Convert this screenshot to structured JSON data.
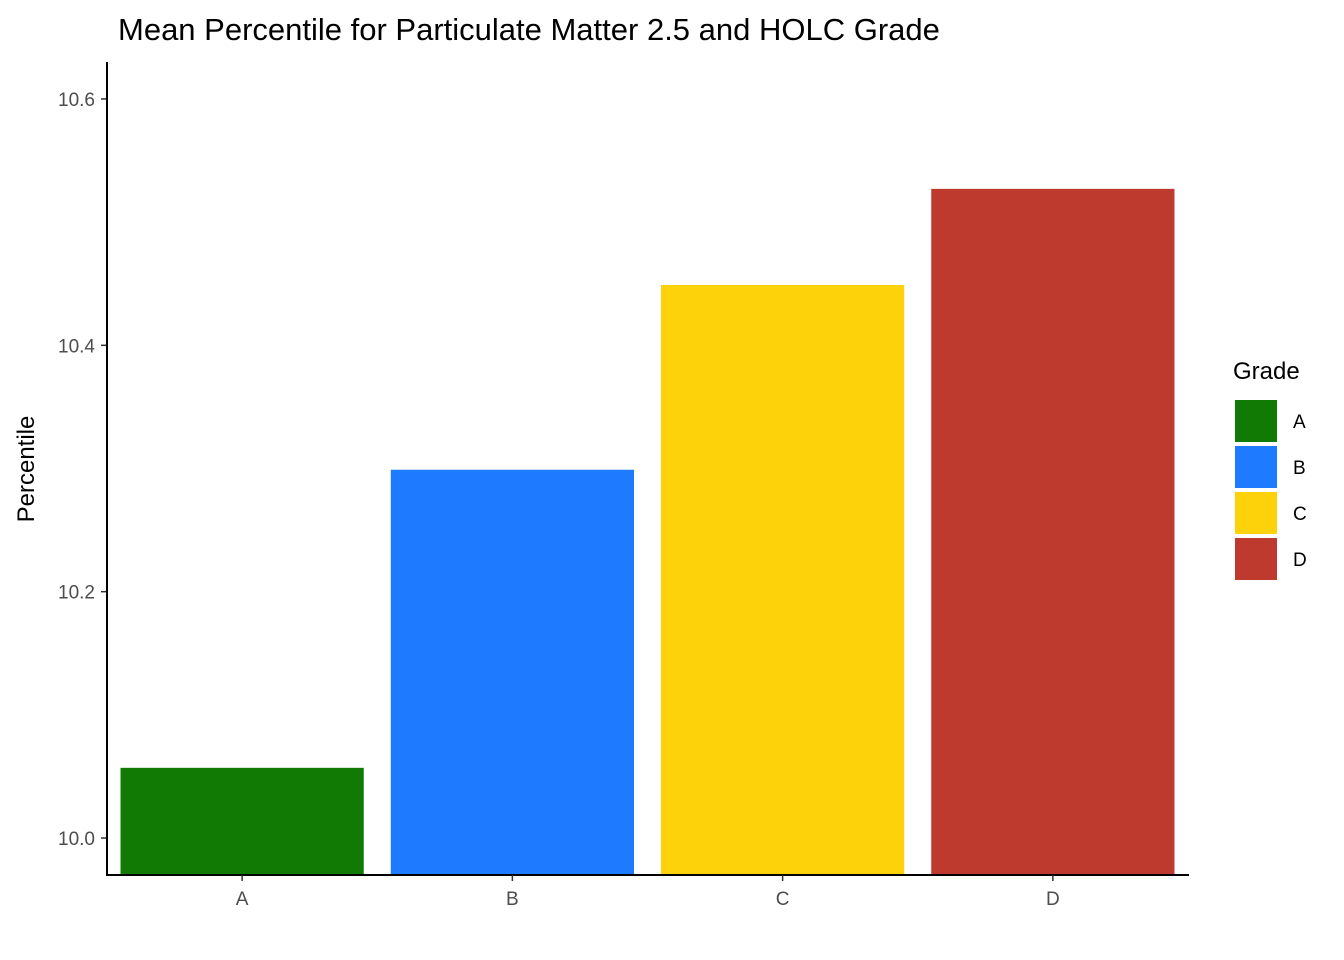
{
  "chart_data": {
    "type": "bar",
    "title": "Mean Percentile for Particulate Matter 2.5 and HOLC Grade",
    "xlabel": "",
    "ylabel": "Percentile",
    "categories": [
      "A",
      "B",
      "C",
      "D"
    ],
    "values": [
      10.057,
      10.299,
      10.449,
      10.527
    ],
    "colors": [
      "#117A04",
      "#1E7BFF",
      "#FDD20B",
      "#BE3A2F"
    ],
    "ylim": [
      9.97,
      10.63
    ],
    "y_ticks": [
      10.0,
      10.2,
      10.4,
      10.6
    ],
    "y_tick_labels": [
      "10.0",
      "10.2",
      "10.4",
      "10.6"
    ],
    "grid": false,
    "legend": {
      "title": "Grade",
      "position": "right",
      "items": [
        "A",
        "B",
        "C",
        "D"
      ]
    }
  }
}
